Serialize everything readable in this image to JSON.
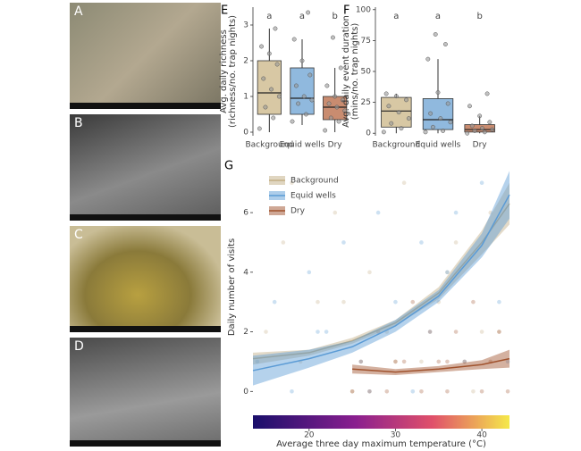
{
  "photos": [
    {
      "label": "A"
    },
    {
      "label": "B"
    },
    {
      "label": "C"
    },
    {
      "label": "D"
    }
  ],
  "chart_data": [
    {
      "type": "box",
      "panel": "E",
      "ylabel": [
        "Avg. daily richness",
        "(richness/no. trap nights)"
      ],
      "categories": [
        "Background",
        "Equid wells",
        "Dry"
      ],
      "annotations": [
        "a",
        "a",
        "b"
      ],
      "colors": [
        "#d8c8a4",
        "#90b9de",
        "#c98c70"
      ],
      "ylim": [
        -0.1,
        3.5
      ],
      "yticks": [
        0,
        1,
        2,
        3
      ],
      "stats": [
        {
          "min": 0,
          "q1": 0.5,
          "median": 1.1,
          "q3": 2.0,
          "max": 2.9
        },
        {
          "min": 0.2,
          "q1": 0.5,
          "median": 0.95,
          "q3": 1.8,
          "max": 2.6
        },
        {
          "min": 0,
          "q1": 0.35,
          "median": 0.7,
          "q3": 1.0,
          "max": 1.8
        }
      ],
      "points": [
        [
          0.1,
          0.4,
          0.7,
          1.0,
          1.2,
          1.5,
          1.9,
          2.2,
          2.4,
          2.9
        ],
        [
          0.3,
          0.5,
          0.8,
          0.9,
          1.0,
          1.3,
          1.6,
          2.0,
          2.6,
          3.35
        ],
        [
          0.05,
          0.3,
          0.4,
          0.6,
          0.7,
          0.8,
          0.9,
          1.0,
          1.3,
          1.8,
          2.65
        ]
      ]
    },
    {
      "type": "box",
      "panel": "F",
      "ylabel": [
        "Avg. daily event duration",
        "(mins/no. trap nights)"
      ],
      "categories": [
        "Background",
        "Equid wells",
        "Dry"
      ],
      "annotations": [
        "a",
        "a",
        "b"
      ],
      "colors": [
        "#d8c8a4",
        "#90b9de",
        "#c98c70"
      ],
      "ylim": [
        -2,
        102
      ],
      "yticks": [
        0,
        25,
        50,
        75,
        100
      ],
      "stats": [
        {
          "min": 0,
          "q1": 5,
          "median": 18,
          "q3": 29,
          "max": 32
        },
        {
          "min": 0,
          "q1": 3,
          "median": 11,
          "q3": 28,
          "max": 60
        },
        {
          "min": 0,
          "q1": 1,
          "median": 3,
          "q3": 7,
          "max": 14
        }
      ],
      "points": [
        [
          1,
          4,
          8,
          12,
          17,
          22,
          27,
          30,
          32
        ],
        [
          1,
          2,
          5,
          9,
          12,
          16,
          24,
          33,
          60,
          72,
          80
        ],
        [
          0,
          1,
          2,
          3,
          4,
          6,
          9,
          14,
          22,
          32
        ]
      ]
    },
    {
      "type": "line",
      "panel": "G",
      "ylabel": "Daily number of visits",
      "xlabel": "Average three day maximum temperature (°C)",
      "xlim": [
        13.5,
        43.2
      ],
      "xticks": [
        20,
        30,
        40
      ],
      "ylim": [
        -0.8,
        7.8
      ],
      "yticks": [
        0,
        2,
        4,
        6
      ],
      "series": [
        {
          "name": "Background",
          "color": "#c2ad84",
          "x": [
            13.5,
            20,
            25,
            30,
            35,
            40,
            43.2
          ],
          "values": [
            1.1,
            1.3,
            1.7,
            2.3,
            3.3,
            5.0,
            6.3
          ],
          "lower": [
            0.9,
            1.2,
            1.6,
            2.2,
            3.1,
            4.6,
            5.6
          ],
          "upper": [
            1.3,
            1.4,
            1.8,
            2.4,
            3.5,
            5.4,
            7.0
          ],
          "points_x": [
            15,
            17,
            19,
            21,
            23,
            25,
            27,
            29,
            31,
            33,
            35,
            37,
            39,
            41,
            42,
            18,
            24,
            30,
            36,
            40
          ],
          "points_y": [
            2,
            5,
            1,
            3,
            6,
            0,
            4,
            2,
            7,
            1,
            3,
            5,
            0,
            6,
            2,
            7,
            3,
            1,
            4,
            2
          ]
        },
        {
          "name": "Equid wells",
          "color": "#5b9bd5",
          "x": [
            13.5,
            20,
            25,
            30,
            35,
            40,
            43.2
          ],
          "values": [
            0.7,
            1.1,
            1.5,
            2.2,
            3.2,
            4.9,
            6.6
          ],
          "lower": [
            0.2,
            0.8,
            1.3,
            2.0,
            3.0,
            4.5,
            5.8
          ],
          "upper": [
            1.2,
            1.4,
            1.7,
            2.4,
            3.4,
            5.3,
            7.4
          ],
          "points_x": [
            14,
            16,
            18,
            20,
            22,
            24,
            26,
            28,
            30,
            32,
            34,
            36,
            38,
            40,
            42,
            21,
            27,
            33,
            37,
            43
          ],
          "points_y": [
            1,
            3,
            0,
            4,
            2,
            5,
            1,
            6,
            3,
            0,
            2,
            4,
            1,
            7,
            3,
            2,
            0,
            5,
            6,
            1
          ]
        },
        {
          "name": "Dry",
          "color": "#a0522d",
          "x": [
            25,
            30,
            35,
            40,
            43.2
          ],
          "values": [
            0.75,
            0.65,
            0.75,
            0.9,
            1.1
          ],
          "lower": [
            0.6,
            0.55,
            0.65,
            0.75,
            0.8
          ],
          "upper": [
            0.9,
            0.75,
            0.85,
            1.05,
            1.4
          ],
          "points_x": [
            25,
            26,
            28,
            29,
            31,
            32,
            33,
            34,
            35,
            36,
            37,
            38,
            39,
            40,
            41,
            42,
            43,
            30,
            27,
            36
          ],
          "points_y": [
            0,
            1,
            2,
            0,
            1,
            3,
            0,
            2,
            1,
            0,
            2,
            1,
            3,
            0,
            1,
            2,
            0,
            1,
            0,
            1
          ]
        }
      ]
    }
  ]
}
